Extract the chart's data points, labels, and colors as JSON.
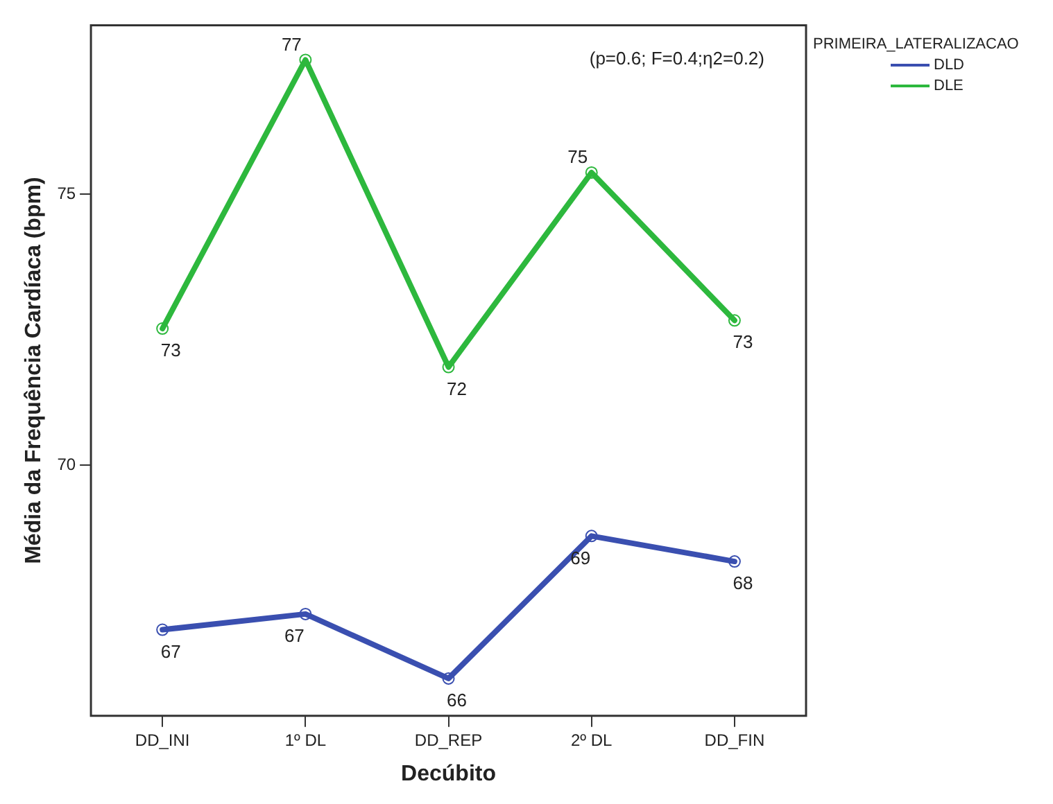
{
  "chart_data": {
    "type": "line",
    "xlabel": "Decúbito",
    "ylabel": "Média da Frequência Cardíaca (bpm)",
    "legend_title": "PRIMEIRA_LATERALIZACAO",
    "annotations": [
      "(p=0.6; F=0.4;η2=0.2)"
    ],
    "categories": [
      "DD_INI",
      "1º DL",
      "DD_REP",
      "2º DL",
      "DD_FIN"
    ],
    "series": [
      {
        "name": "DLD",
        "color": "#3a4fb0",
        "values": [
          66.96,
          67.25,
          66.06,
          68.69,
          68.22
        ],
        "value_labels": [
          "67",
          "67",
          "66",
          "69",
          "68"
        ]
      },
      {
        "name": "DLE",
        "color": "#2db83d",
        "values": [
          72.52,
          77.48,
          71.81,
          75.4,
          72.67
        ],
        "value_labels": [
          "73",
          "77",
          "72",
          "75",
          "73"
        ]
      }
    ],
    "ylim": [
      65.37,
      78.12
    ],
    "yticks": [
      70,
      75
    ],
    "grid": false,
    "legend": "right",
    "marker": "circle",
    "line_style": "solid"
  }
}
